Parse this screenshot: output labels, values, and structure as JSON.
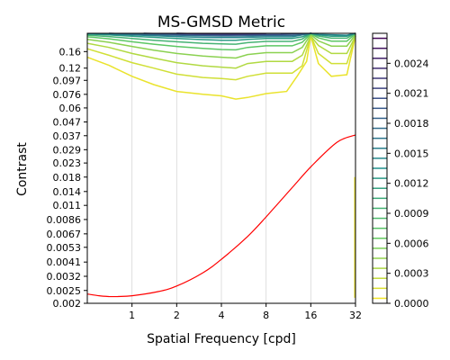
{
  "chart_data": {
    "type": "contour",
    "title": "MS-GMSD Metric",
    "xlabel": "Spatial Frequency [cpd]",
    "ylabel": "Contrast",
    "x_scale": "log2",
    "y_scale": "log",
    "xlim": [
      0.5,
      32
    ],
    "ylim": [
      0.002,
      0.22
    ],
    "x_ticks": [
      1,
      2,
      4,
      8,
      16,
      32
    ],
    "x_tick_labels": [
      "1",
      "2",
      "4",
      "8",
      "16",
      "32"
    ],
    "x_grid": true,
    "y_ticks": [
      0.002,
      0.0025,
      0.0032,
      0.0041,
      0.0053,
      0.0067,
      0.0086,
      0.011,
      0.014,
      0.018,
      0.023,
      0.029,
      0.037,
      0.047,
      0.06,
      0.076,
      0.097,
      0.12,
      0.16
    ],
    "y_tick_labels": [
      "0.002",
      "0.0025",
      "0.0032",
      "0.0041",
      "0.0053",
      "0.0067",
      "0.0086",
      "0.011",
      "0.014",
      "0.018",
      "0.023",
      "0.029",
      "0.037",
      "0.047",
      "0.06",
      "0.076",
      "0.097",
      "0.12",
      "0.16"
    ],
    "colorbar": {
      "colormap": "viridis_r",
      "min": 0.0,
      "max": 0.0027,
      "ticks": [
        0.0,
        0.0003,
        0.0006,
        0.0009,
        0.0012,
        0.0015,
        0.0018,
        0.0021,
        0.0024
      ],
      "tick_labels": [
        "0.0000",
        "0.0003",
        "0.0006",
        "0.0009",
        "0.0012",
        "0.0015",
        "0.0018",
        "0.0021",
        "0.0024"
      ],
      "levels": 27
    },
    "contour_lines": [
      {
        "level_fraction": 0.03,
        "points": [
          [
            0.5,
            0.145
          ],
          [
            0.7,
            0.126
          ],
          [
            1,
            0.104
          ],
          [
            1.4,
            0.09
          ],
          [
            2,
            0.08
          ],
          [
            3,
            0.076
          ],
          [
            4,
            0.074
          ],
          [
            5,
            0.07
          ],
          [
            6,
            0.072
          ],
          [
            8,
            0.077
          ],
          [
            11,
            0.08
          ],
          [
            13,
            0.105
          ],
          [
            15,
            0.135
          ],
          [
            16,
            0.21
          ],
          [
            18,
            0.13
          ],
          [
            22,
            0.104
          ],
          [
            28,
            0.107
          ],
          [
            32,
            0.21
          ]
        ]
      },
      {
        "level_fraction": 0.07,
        "points": [
          [
            0.5,
            0.168
          ],
          [
            0.7,
            0.15
          ],
          [
            1,
            0.132
          ],
          [
            1.4,
            0.12
          ],
          [
            2,
            0.108
          ],
          [
            3,
            0.102
          ],
          [
            4,
            0.1
          ],
          [
            5,
            0.098
          ],
          [
            6,
            0.104
          ],
          [
            8,
            0.11
          ],
          [
            12,
            0.11
          ],
          [
            14,
            0.125
          ],
          [
            16,
            0.21
          ],
          [
            18,
            0.155
          ],
          [
            22,
            0.13
          ],
          [
            28,
            0.13
          ],
          [
            32,
            0.21
          ]
        ]
      },
      {
        "level_fraction": 0.12,
        "points": [
          [
            0.5,
            0.185
          ],
          [
            0.7,
            0.172
          ],
          [
            1,
            0.155
          ],
          [
            1.4,
            0.143
          ],
          [
            2,
            0.132
          ],
          [
            3,
            0.125
          ],
          [
            4,
            0.122
          ],
          [
            5,
            0.12
          ],
          [
            6,
            0.13
          ],
          [
            8,
            0.135
          ],
          [
            12,
            0.135
          ],
          [
            14,
            0.15
          ],
          [
            16,
            0.21
          ],
          [
            18,
            0.178
          ],
          [
            22,
            0.155
          ],
          [
            28,
            0.155
          ],
          [
            32,
            0.21
          ]
        ]
      },
      {
        "level_fraction": 0.18,
        "points": [
          [
            0.5,
            0.198
          ],
          [
            0.7,
            0.188
          ],
          [
            1,
            0.175
          ],
          [
            1.4,
            0.164
          ],
          [
            2,
            0.155
          ],
          [
            3,
            0.148
          ],
          [
            4,
            0.145
          ],
          [
            5,
            0.143
          ],
          [
            6,
            0.152
          ],
          [
            8,
            0.157
          ],
          [
            12,
            0.157
          ],
          [
            14,
            0.172
          ],
          [
            16,
            0.215
          ],
          [
            18,
            0.193
          ],
          [
            22,
            0.176
          ],
          [
            28,
            0.176
          ],
          [
            32,
            0.215
          ]
        ]
      },
      {
        "level_fraction": 0.26,
        "points": [
          [
            0.5,
            0.207
          ],
          [
            0.7,
            0.2
          ],
          [
            1,
            0.19
          ],
          [
            1.4,
            0.182
          ],
          [
            2,
            0.175
          ],
          [
            3,
            0.169
          ],
          [
            4,
            0.166
          ],
          [
            5,
            0.165
          ],
          [
            6,
            0.172
          ],
          [
            8,
            0.177
          ],
          [
            12,
            0.177
          ],
          [
            14,
            0.188
          ],
          [
            16,
            0.218
          ],
          [
            18,
            0.203
          ],
          [
            22,
            0.192
          ],
          [
            28,
            0.192
          ],
          [
            32,
            0.218
          ]
        ]
      },
      {
        "level_fraction": 0.35,
        "points": [
          [
            0.5,
            0.213
          ],
          [
            0.7,
            0.208
          ],
          [
            1,
            0.201
          ],
          [
            1.4,
            0.195
          ],
          [
            2,
            0.19
          ],
          [
            3,
            0.185
          ],
          [
            4,
            0.183
          ],
          [
            5,
            0.182
          ],
          [
            6,
            0.187
          ],
          [
            8,
            0.191
          ],
          [
            12,
            0.191
          ],
          [
            14,
            0.199
          ],
          [
            16,
            0.22
          ],
          [
            18,
            0.21
          ],
          [
            22,
            0.202
          ],
          [
            28,
            0.202
          ],
          [
            32,
            0.22
          ]
        ]
      },
      {
        "level_fraction": 0.45,
        "points": [
          [
            0.5,
            0.217
          ],
          [
            0.7,
            0.214
          ],
          [
            1,
            0.209
          ],
          [
            1.4,
            0.205
          ],
          [
            2,
            0.201
          ],
          [
            3,
            0.197
          ],
          [
            4,
            0.195
          ],
          [
            5,
            0.195
          ],
          [
            6,
            0.198
          ],
          [
            8,
            0.201
          ],
          [
            12,
            0.201
          ],
          [
            14,
            0.207
          ],
          [
            16,
            0.22
          ],
          [
            18,
            0.214
          ],
          [
            22,
            0.209
          ],
          [
            28,
            0.209
          ],
          [
            32,
            0.22
          ]
        ]
      },
      {
        "level_fraction": 0.55,
        "points": [
          [
            0.5,
            0.219
          ],
          [
            1,
            0.214
          ],
          [
            2,
            0.208
          ],
          [
            3,
            0.205
          ],
          [
            4,
            0.204
          ],
          [
            5,
            0.204
          ],
          [
            8,
            0.207
          ],
          [
            12,
            0.207
          ],
          [
            16,
            0.22
          ],
          [
            18,
            0.216
          ],
          [
            28,
            0.213
          ],
          [
            32,
            0.22
          ]
        ]
      },
      {
        "level_fraction": 0.65,
        "points": [
          [
            0.7,
            0.22
          ],
          [
            1,
            0.217
          ],
          [
            2,
            0.213
          ],
          [
            4,
            0.21
          ],
          [
            5,
            0.21
          ],
          [
            8,
            0.212
          ],
          [
            12,
            0.212
          ],
          [
            14,
            0.216
          ],
          [
            16,
            0.22
          ]
        ]
      },
      {
        "level_fraction": 0.75,
        "points": [
          [
            1.2,
            0.22
          ],
          [
            2,
            0.217
          ],
          [
            4,
            0.214
          ],
          [
            6,
            0.215
          ],
          [
            10,
            0.216
          ],
          [
            14,
            0.219
          ]
        ]
      },
      {
        "level_fraction": 0.85,
        "points": [
          [
            2,
            0.22
          ],
          [
            3,
            0.218
          ],
          [
            5,
            0.217
          ],
          [
            8,
            0.219
          ]
        ]
      }
    ],
    "edge_segment": {
      "level_fraction": 0.02,
      "x": 32,
      "y_range": [
        0.0022,
        0.018
      ]
    },
    "threshold_curve": {
      "color": "#ff0000",
      "points": [
        [
          0.5,
          0.00235
        ],
        [
          0.6,
          0.00228
        ],
        [
          0.7,
          0.00225
        ],
        [
          0.8,
          0.00225
        ],
        [
          1,
          0.00228
        ],
        [
          1.5,
          0.00245
        ],
        [
          2,
          0.0027
        ],
        [
          3,
          0.0034
        ],
        [
          4,
          0.0043
        ],
        [
          6,
          0.0064
        ],
        [
          8,
          0.009
        ],
        [
          12,
          0.015
        ],
        [
          16,
          0.0215
        ],
        [
          24,
          0.033
        ],
        [
          32,
          0.0375
        ]
      ]
    }
  }
}
